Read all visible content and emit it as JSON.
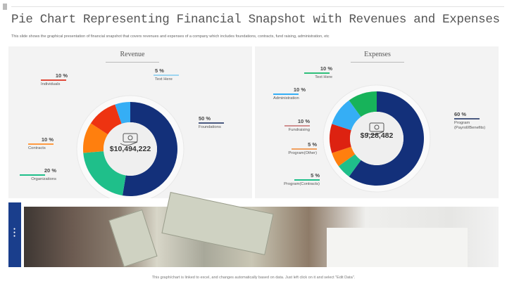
{
  "title": "Pie Chart Representing Financial Snapshot with Revenues and Expenses",
  "subtitle": "This slide shows the graphical presentation of financial snapshot that covers revenues and expenses of a company which includes foundations, contracts, fund raising, administration, etc",
  "footer": "This graph/chart is linked to excel, and changes automatically based on data. Just left click on it and select \"Edit Data\".",
  "chart_data": [
    {
      "type": "pie",
      "title": "Revenue",
      "total": "$10,494,222",
      "icon": "money-hand-icon",
      "categories": [
        "Foundations",
        "Organizations",
        "Contracts",
        "Individuals",
        "Text Here"
      ],
      "values": [
        50,
        20,
        10,
        10,
        5
      ],
      "labels": [
        "50 %",
        "20 %",
        "10 %",
        "10 %",
        "5 %"
      ],
      "colors": [
        "#13307a",
        "#1fbf8a",
        "#ff7f0e",
        "#ee3311",
        "#35aef5"
      ]
    },
    {
      "type": "pie",
      "title": "Expenses",
      "total": "$9,28,482",
      "icon": "money-gear-icon",
      "categories": [
        "Program (Payroll/Benefits)",
        "Program(Contracts)",
        "Program(Other)",
        "Fundraising",
        "Administration",
        "Text Here"
      ],
      "values": [
        60,
        5,
        5,
        10,
        10,
        10
      ],
      "labels": [
        "60 %",
        "5 %",
        "5 %",
        "10 %",
        "10 %",
        "10 %"
      ],
      "colors": [
        "#13307a",
        "#1fbf8a",
        "#ff7f0e",
        "#dd2211",
        "#35aef5",
        "#17b35a"
      ]
    }
  ]
}
